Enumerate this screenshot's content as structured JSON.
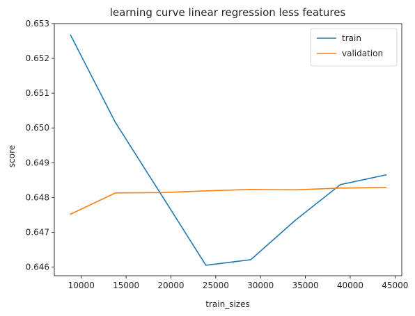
{
  "chart_data": {
    "type": "line",
    "title": "learning curve linear regression less features",
    "xlabel": "train_sizes",
    "ylabel": "score",
    "xlim": [
      6990,
      45750
    ],
    "ylim": [
      0.64575,
      0.653
    ],
    "xticks": [
      10000,
      15000,
      20000,
      25000,
      30000,
      35000,
      40000,
      45000
    ],
    "xtick_labels": [
      "10000",
      "15000",
      "20000",
      "25000",
      "30000",
      "35000",
      "40000",
      "45000"
    ],
    "yticks": [
      0.646,
      0.647,
      0.648,
      0.649,
      0.65,
      0.651,
      0.652,
      0.653
    ],
    "ytick_labels": [
      "0.646",
      "0.647",
      "0.648",
      "0.649",
      "0.650",
      "0.651",
      "0.652",
      "0.653"
    ],
    "grid": false,
    "legend_position": "top-right",
    "x": [
      8800,
      13800,
      18900,
      23900,
      28900,
      33900,
      38900,
      44000
    ],
    "series": [
      {
        "name": "train",
        "color": "#1f77b4",
        "values": [
          0.65267,
          0.65016,
          0.64809,
          0.64605,
          0.64621,
          0.64735,
          0.64837,
          0.64865
        ]
      },
      {
        "name": "validation",
        "color": "#ff7f0e",
        "values": [
          0.64752,
          0.64813,
          0.64814,
          0.64819,
          0.64823,
          0.64822,
          0.64827,
          0.64829
        ]
      }
    ]
  }
}
